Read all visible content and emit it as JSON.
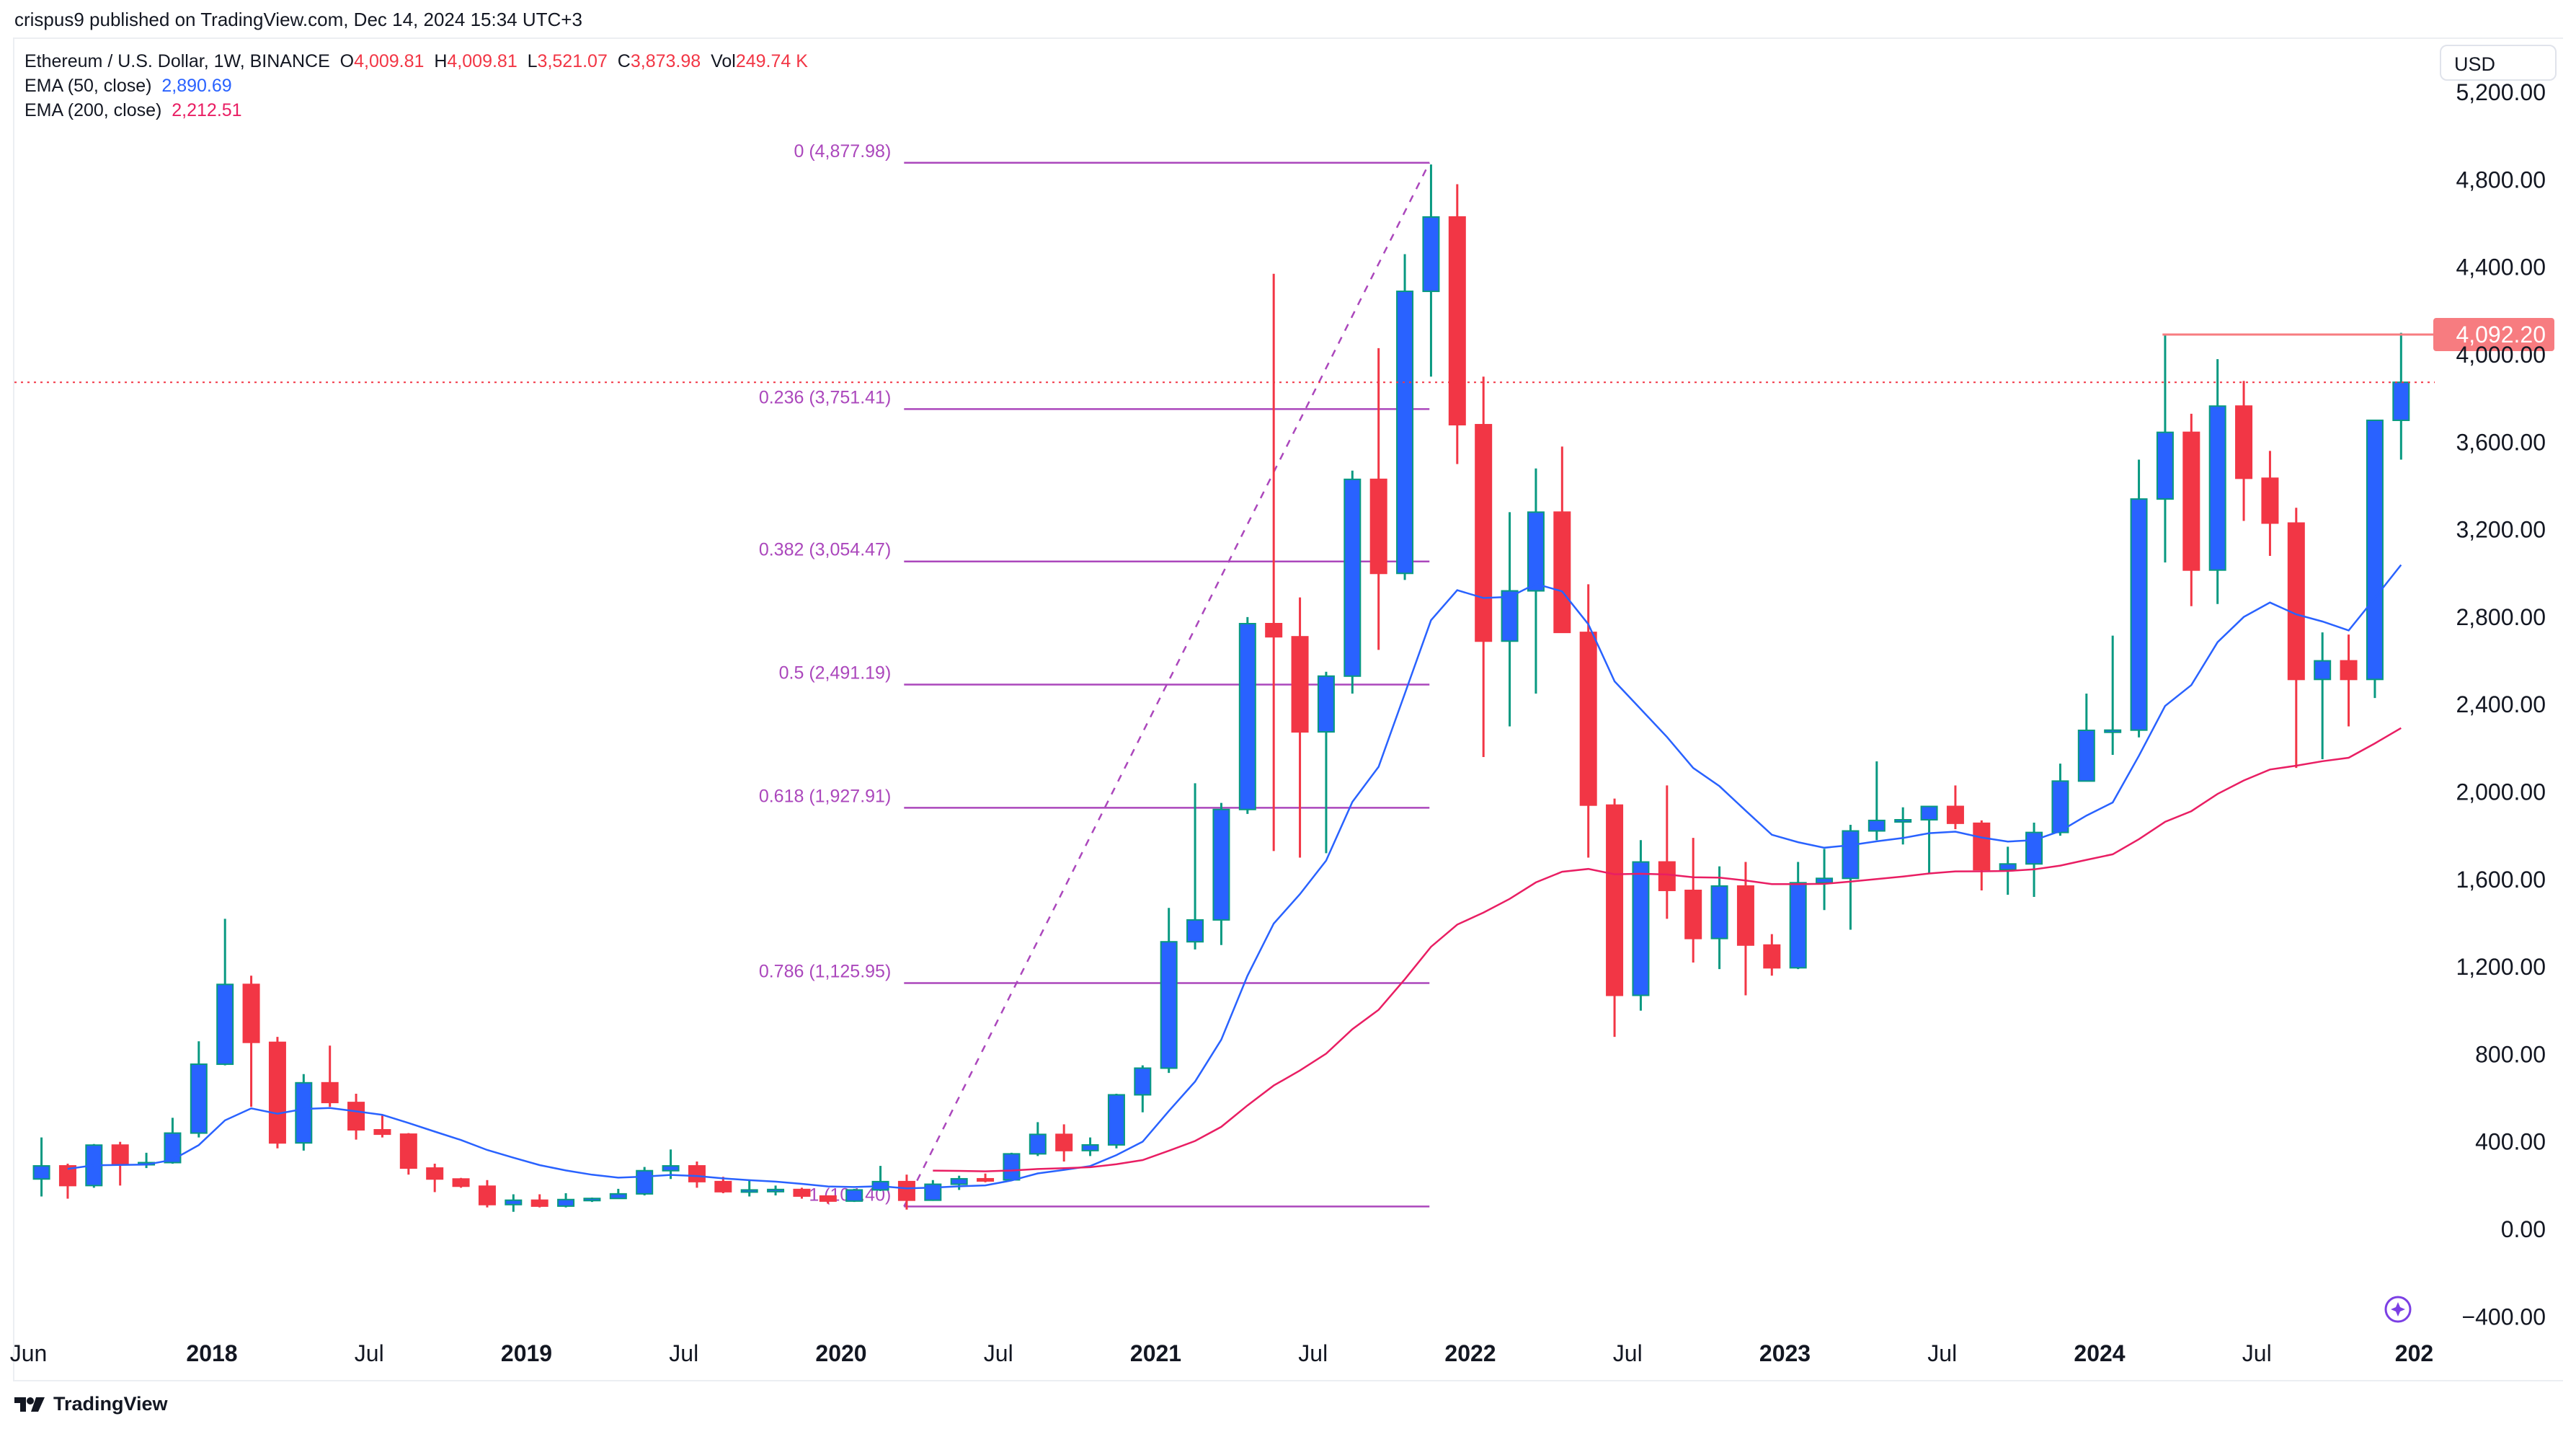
{
  "published": "crispus9 published on TradingView.com, Dec 14, 2024 15:34 UTC+3",
  "legend": {
    "symbol": "Ethereum / U.S. Dollar, 1W, BINANCE",
    "o_label": "O",
    "o": "4,009.81",
    "h_label": "H",
    "h": "4,009.81",
    "l_label": "L",
    "l": "3,521.07",
    "c_label": "C",
    "c": "3,873.98",
    "vol_label": "Vol",
    "vol": "249.74 K",
    "ema50_label": "EMA (50, close)",
    "ema50": "2,890.69",
    "ema200_label": "EMA (200, close)",
    "ema200": "2,212.51"
  },
  "currency": "USD",
  "footer": "TradingView",
  "colors": {
    "up": "#089981",
    "down": "#f23645",
    "ema50": "#2962ff",
    "ema200": "#e91e63",
    "fib": "#ab47bc",
    "resistance": "#f77c80"
  },
  "chart_data": {
    "type": "candlestick",
    "start": "2017-06",
    "ohlc": [
      [
        230,
        420,
        150,
        290
      ],
      [
        290,
        300,
        140,
        200
      ],
      [
        200,
        390,
        190,
        385
      ],
      [
        385,
        400,
        200,
        300
      ],
      [
        300,
        350,
        280,
        305
      ],
      [
        305,
        510,
        300,
        440
      ],
      [
        440,
        860,
        420,
        755
      ],
      [
        755,
        1420,
        750,
        1120
      ],
      [
        1120,
        1160,
        560,
        855
      ],
      [
        855,
        880,
        370,
        395
      ],
      [
        395,
        710,
        360,
        670
      ],
      [
        670,
        840,
        560,
        580
      ],
      [
        580,
        620,
        410,
        455
      ],
      [
        455,
        520,
        420,
        435
      ],
      [
        435,
        440,
        250,
        280
      ],
      [
        280,
        300,
        170,
        230
      ],
      [
        230,
        235,
        190,
        197
      ],
      [
        197,
        225,
        100,
        113
      ],
      [
        113,
        160,
        80,
        133
      ],
      [
        133,
        160,
        100,
        106
      ],
      [
        106,
        165,
        100,
        136
      ],
      [
        136,
        145,
        125,
        141
      ],
      [
        141,
        185,
        140,
        162
      ],
      [
        162,
        285,
        155,
        268
      ],
      [
        268,
        365,
        230,
        290
      ],
      [
        290,
        310,
        190,
        218
      ],
      [
        218,
        240,
        165,
        172
      ],
      [
        172,
        225,
        150,
        180
      ],
      [
        180,
        200,
        155,
        182
      ],
      [
        182,
        190,
        140,
        152
      ],
      [
        152,
        155,
        117,
        129
      ],
      [
        129,
        185,
        125,
        180
      ],
      [
        180,
        290,
        175,
        218
      ],
      [
        218,
        250,
        90,
        133
      ],
      [
        133,
        225,
        130,
        206
      ],
      [
        206,
        245,
        180,
        231
      ],
      [
        231,
        255,
        215,
        226
      ],
      [
        226,
        350,
        225,
        345
      ],
      [
        345,
        490,
        335,
        434
      ],
      [
        434,
        480,
        310,
        360
      ],
      [
        360,
        420,
        335,
        386
      ],
      [
        386,
        620,
        370,
        615
      ],
      [
        615,
        750,
        535,
        737
      ],
      [
        737,
        1470,
        715,
        1315
      ],
      [
        1315,
        2040,
        1280,
        1415
      ],
      [
        1415,
        1950,
        1300,
        1920
      ],
      [
        1920,
        2800,
        1900,
        2770
      ],
      [
        2770,
        4370,
        1730,
        2710
      ],
      [
        2710,
        2890,
        1700,
        2275
      ],
      [
        2275,
        2550,
        1720,
        2530
      ],
      [
        2530,
        3470,
        2450,
        3430
      ],
      [
        3430,
        4030,
        2650,
        3000
      ],
      [
        3000,
        4460,
        2970,
        4290
      ],
      [
        4290,
        4870,
        3900,
        4630
      ],
      [
        4630,
        4780,
        3500,
        3680
      ],
      [
        3680,
        3900,
        2160,
        2690
      ],
      [
        2690,
        3280,
        2300,
        2920
      ],
      [
        2920,
        3480,
        2450,
        3280
      ],
      [
        3280,
        3580,
        2760,
        2730
      ],
      [
        2730,
        2950,
        1700,
        1940
      ],
      [
        1940,
        1970,
        880,
        1070
      ],
      [
        1070,
        1780,
        1000,
        1680
      ],
      [
        1680,
        2030,
        1420,
        1550
      ],
      [
        1550,
        1790,
        1220,
        1330
      ],
      [
        1330,
        1660,
        1190,
        1570
      ],
      [
        1570,
        1680,
        1070,
        1300
      ],
      [
        1300,
        1350,
        1160,
        1196
      ],
      [
        1196,
        1680,
        1190,
        1585
      ],
      [
        1585,
        1740,
        1460,
        1605
      ],
      [
        1605,
        1850,
        1370,
        1822
      ],
      [
        1822,
        2140,
        1780,
        1870
      ],
      [
        1870,
        1930,
        1760,
        1873
      ],
      [
        1873,
        1930,
        1625,
        1934
      ],
      [
        1934,
        2030,
        1830,
        1857
      ],
      [
        1857,
        1870,
        1550,
        1645
      ],
      [
        1645,
        1750,
        1530,
        1671
      ],
      [
        1671,
        1860,
        1520,
        1815
      ],
      [
        1815,
        2130,
        1800,
        2050
      ],
      [
        2050,
        2450,
        2050,
        2282
      ],
      [
        2282,
        2715,
        2170,
        2283
      ],
      [
        2283,
        3520,
        2250,
        3340
      ],
      [
        3340,
        4090,
        3050,
        3645
      ],
      [
        3645,
        3730,
        2850,
        3015
      ],
      [
        3015,
        3980,
        2860,
        3765
      ],
      [
        3765,
        3880,
        3240,
        3435
      ],
      [
        3435,
        3560,
        3080,
        3230
      ],
      [
        3230,
        3300,
        2110,
        2515
      ],
      [
        2515,
        2730,
        2150,
        2600
      ],
      [
        2600,
        2720,
        2300,
        2515
      ],
      [
        2515,
        3700,
        2430,
        3700
      ],
      [
        3700,
        4100,
        3520,
        3874
      ]
    ],
    "ylim": [
      -400,
      5200
    ],
    "y_ticks": [
      "5,200.00",
      "4,800.00",
      "4,400.00",
      "4,000.00",
      "3,600.00",
      "3,200.00",
      "2,800.00",
      "2,400.00",
      "2,000.00",
      "1,600.00",
      "1,200.00",
      "800.00",
      "400.00",
      "0.00",
      "−400.00"
    ],
    "y_tick_values": [
      5200,
      4800,
      4400,
      4000,
      3600,
      3200,
      2800,
      2400,
      2000,
      1600,
      1200,
      800,
      400,
      0,
      -400
    ],
    "x_ticks": [
      {
        "label": "Jun",
        "t": 2017.417,
        "bold": false
      },
      {
        "label": "2018",
        "t": 2018,
        "bold": true
      },
      {
        "label": "Jul",
        "t": 2018.5,
        "bold": false
      },
      {
        "label": "2019",
        "t": 2019,
        "bold": true
      },
      {
        "label": "Jul",
        "t": 2019.5,
        "bold": false
      },
      {
        "label": "2020",
        "t": 2020,
        "bold": true
      },
      {
        "label": "Jul",
        "t": 2020.5,
        "bold": false
      },
      {
        "label": "2021",
        "t": 2021,
        "bold": true
      },
      {
        "label": "Jul",
        "t": 2021.5,
        "bold": false
      },
      {
        "label": "2022",
        "t": 2022,
        "bold": true
      },
      {
        "label": "Jul",
        "t": 2022.5,
        "bold": false
      },
      {
        "label": "2023",
        "t": 2023,
        "bold": true
      },
      {
        "label": "Jul",
        "t": 2023.5,
        "bold": false
      },
      {
        "label": "2024",
        "t": 2024,
        "bold": true
      },
      {
        "label": "Jul",
        "t": 2024.5,
        "bold": false
      },
      {
        "label": "202",
        "t": 2025,
        "bold": true
      }
    ],
    "fib": {
      "from": {
        "t": 2020.2,
        "price": 104.4
      },
      "to": {
        "t": 2021.87,
        "price": 4877.98
      },
      "levels": [
        {
          "label": "0 (4,877.98)",
          "price": 4877.98
        },
        {
          "label": "0.236 (3,751.41)",
          "price": 3751.41
        },
        {
          "label": "0.382 (3,054.47)",
          "price": 3054.47
        },
        {
          "label": "0.5 (2,491.19)",
          "price": 2491.19
        },
        {
          "label": "0.618 (1,927.91)",
          "price": 1927.91
        },
        {
          "label": "0.786 (1,125.95)",
          "price": 1125.95
        },
        {
          "label": "1 (104.40)",
          "price": 104.4
        }
      ]
    },
    "resistance": {
      "price": 4092.2,
      "label": "4,092.20",
      "from_t": 2024.2
    },
    "last_close": 3873.98
  }
}
